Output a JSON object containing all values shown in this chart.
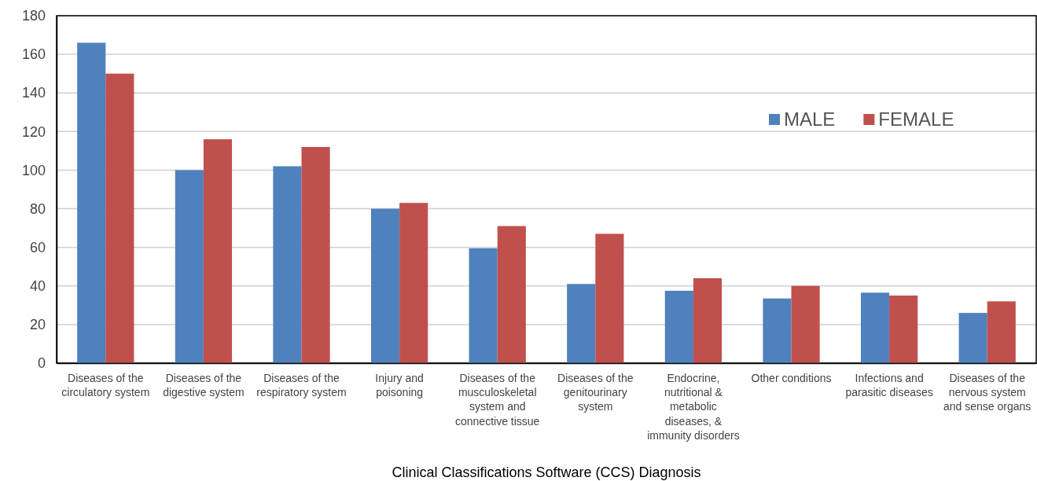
{
  "chart_data": {
    "type": "bar",
    "xlabel": "Clinical Classifications Software (CCS) Diagnosis",
    "categories": [
      "Diseases of the circulatory system",
      "Diseases of the digestive system",
      "Diseases of the respiratory system",
      "Injury and poisoning",
      "Diseases of the musculoskeletal system and connective tissue",
      "Diseases of the genitourinary system",
      "Endocrine, nutritional & metabolic diseases, & immunity disorders",
      "Other conditions",
      "Infections and parasitic diseases",
      "Diseases of the nervous system and sense organs"
    ],
    "series": [
      {
        "name": "MALE",
        "color": "#4f81bd",
        "values": [
          166,
          100,
          102,
          80,
          59.5,
          41,
          37.5,
          33.5,
          36.5,
          26
        ]
      },
      {
        "name": "FEMALE",
        "color": "#c0504d",
        "values": [
          150,
          116,
          112,
          83,
          71,
          67,
          44,
          40,
          35,
          32
        ]
      }
    ],
    "ylim": [
      0,
      180
    ],
    "yticks": [
      0,
      20,
      40,
      60,
      80,
      100,
      120,
      140,
      160,
      180
    ],
    "grid": "y",
    "legend": "top right"
  }
}
